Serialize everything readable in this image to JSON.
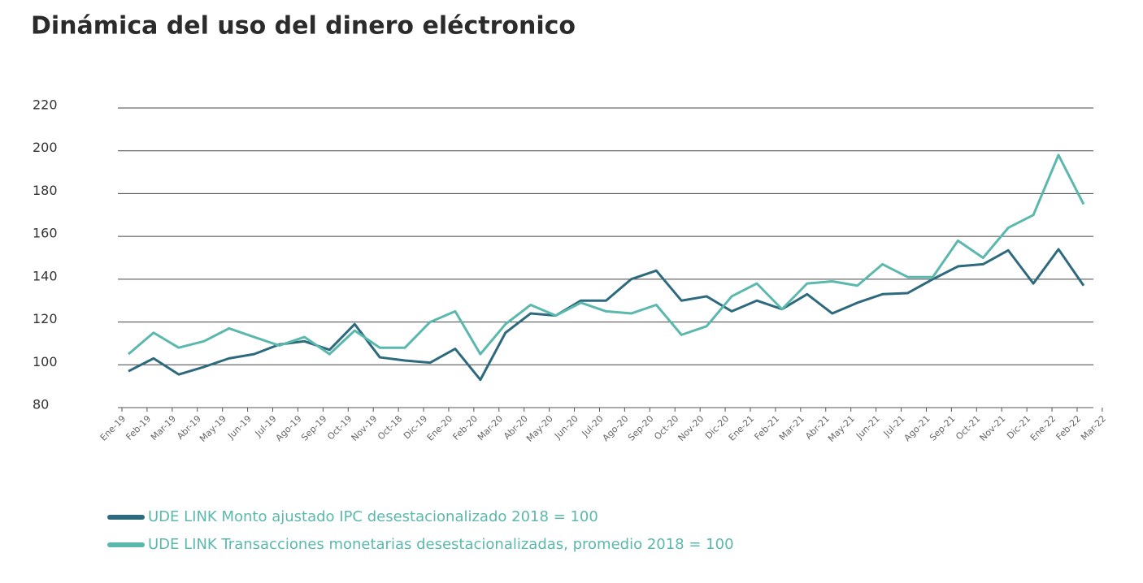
{
  "chart_data": {
    "type": "line",
    "title": "Dinámica del uso del dinero eléctronico",
    "categories": [
      "Ene-19",
      "Feb-19",
      "Mar-19",
      "Abr-19",
      "May-19",
      "Jun-19",
      "Jul-19",
      "Ago-19",
      "Sep-19",
      "Oct-19",
      "Nov-19",
      "Oct-18",
      "Dic-19",
      "Ene-20",
      "Feb-20",
      "Mar-20",
      "Abr-20",
      "May-20",
      "Jun-20",
      "Jul-20",
      "Ago-20",
      "Sep-20",
      "Oct-20",
      "Nov-20",
      "Dic-20",
      "Ene-21",
      "Feb-21",
      "Mar-21",
      "Abr-21",
      "May-21",
      "Jun-21",
      "Jul-21",
      "Ago-21",
      "Sep-21",
      "Oct-21",
      "Nov-21",
      "Dic-21",
      "Ene-22",
      "Feb-22",
      "Mar-22"
    ],
    "series": [
      {
        "name": "UDE LINK Monto ajustado IPC desestacionalizado 2018 = 100",
        "color": "#2e6a7e",
        "values": [
          97,
          103,
          95.5,
          99,
          103,
          105,
          109.5,
          111,
          107,
          119,
          103.5,
          102,
          101,
          107.5,
          93,
          115,
          124,
          123,
          130,
          130,
          140,
          144,
          130,
          132,
          125,
          130,
          126,
          133,
          124,
          129,
          133,
          133.5,
          140,
          146,
          147,
          153.5,
          138,
          154,
          137,
          null
        ]
      },
      {
        "name": "UDE LINK Transacciones monetarias desestacionalizadas, promedio 2018 = 100",
        "color": "#5bb8ad",
        "values": [
          105,
          115,
          108,
          111,
          117,
          113,
          109,
          113,
          105,
          116,
          108,
          108,
          120,
          125,
          105,
          119,
          128,
          123,
          129,
          125,
          124,
          128,
          114,
          118,
          132,
          138,
          126,
          138,
          139,
          137,
          147,
          141,
          141,
          158,
          150,
          164,
          170,
          198,
          175,
          null
        ]
      }
    ],
    "ylim": [
      80,
      220
    ],
    "yticks": [
      80,
      100,
      120,
      140,
      160,
      180,
      200,
      220
    ],
    "grid": true
  }
}
